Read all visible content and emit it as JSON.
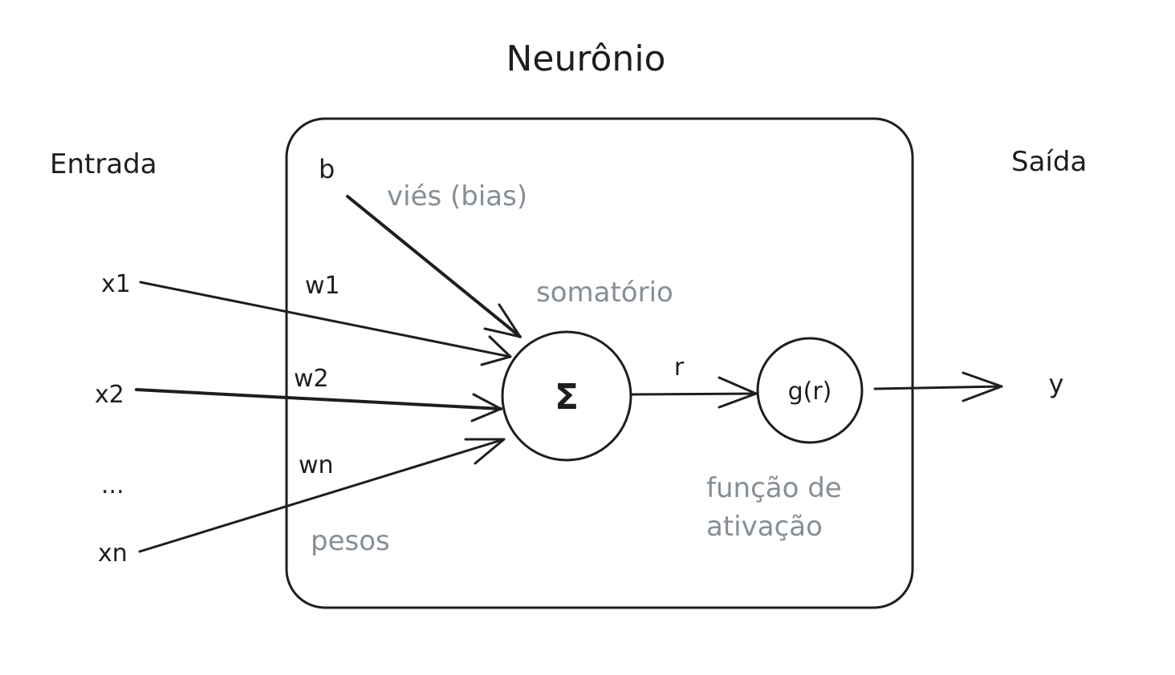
{
  "title": "Neurônio",
  "labels": {
    "input": "Entrada",
    "output": "Saída",
    "x1": "x1",
    "x2": "x2",
    "dots": "...",
    "xn": "xn",
    "bias": "b",
    "bias_note": "viés (bias)",
    "w1": "w1",
    "w2": "w2",
    "wn": "wn",
    "weights_note": "pesos",
    "sum_note": "somatório",
    "sum_symbol": "Σ",
    "r": "r",
    "activation": "g(r)",
    "activation_note_line1": "função de",
    "activation_note_line2": "ativação",
    "y": "y"
  },
  "colors": {
    "stroke": "#1e1e1e",
    "annotation": "#868e96",
    "background": "#ffffff"
  }
}
